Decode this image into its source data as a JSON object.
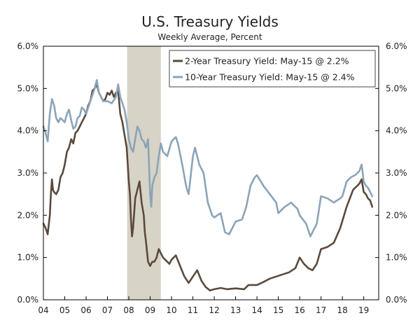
{
  "chart_data": {
    "type": "line",
    "title": "U.S. Treasury Yields",
    "subtitle": "Weekly Average, Percent",
    "xlabel": "",
    "ylabel": "",
    "xlim": [
      2004.0,
      2019.7
    ],
    "ylim": [
      0,
      6
    ],
    "x_ticks": [
      {
        "value": 2004,
        "label": "04"
      },
      {
        "value": 2005,
        "label": "05"
      },
      {
        "value": 2006,
        "label": "06"
      },
      {
        "value": 2007,
        "label": "07"
      },
      {
        "value": 2008,
        "label": "08"
      },
      {
        "value": 2009,
        "label": "09"
      },
      {
        "value": 2010,
        "label": "10"
      },
      {
        "value": 2011,
        "label": "11"
      },
      {
        "value": 2012,
        "label": "12"
      },
      {
        "value": 2013,
        "label": "13"
      },
      {
        "value": 2014,
        "label": "14"
      },
      {
        "value": 2015,
        "label": "15"
      },
      {
        "value": 2016,
        "label": "16"
      },
      {
        "value": 2017,
        "label": "17"
      },
      {
        "value": 2018,
        "label": "18"
      },
      {
        "value": 2019,
        "label": "19"
      }
    ],
    "y_ticks_left": [
      {
        "value": 0,
        "label": "0.0%"
      },
      {
        "value": 1,
        "label": "1.0%"
      },
      {
        "value": 2,
        "label": "2.0%"
      },
      {
        "value": 3,
        "label": "3.0%"
      },
      {
        "value": 4,
        "label": "4.0%"
      },
      {
        "value": 5,
        "label": "5.0%"
      },
      {
        "value": 6,
        "label": "6.0%"
      }
    ],
    "y_ticks_right": [
      {
        "value": 0,
        "label": "0.0%"
      },
      {
        "value": 1,
        "label": "1.0%"
      },
      {
        "value": 2,
        "label": "2.0%"
      },
      {
        "value": 3,
        "label": "3.0%"
      },
      {
        "value": 4,
        "label": "4.0%"
      },
      {
        "value": 5,
        "label": "5.0%"
      },
      {
        "value": 6,
        "label": "6.0%"
      }
    ],
    "grid": false,
    "legend_position": "top-right",
    "recession_shading": [
      {
        "start": 2007.92,
        "end": 2009.5,
        "color": "#d8d3c7"
      }
    ],
    "series": [
      {
        "name": "2-Year Treasury Yield: May-15 @ 2.2%",
        "color": "#5a4a3c",
        "x": [
          2004.0,
          2004.1,
          2004.2,
          2004.3,
          2004.35,
          2004.4,
          2004.45,
          2004.5,
          2004.6,
          2004.7,
          2004.8,
          2004.9,
          2005.0,
          2005.1,
          2005.2,
          2005.3,
          2005.4,
          2005.5,
          2005.6,
          2005.7,
          2005.8,
          2005.9,
          2006.0,
          2006.1,
          2006.2,
          2006.3,
          2006.4,
          2006.5,
          2006.6,
          2006.7,
          2006.8,
          2006.9,
          2007.0,
          2007.1,
          2007.2,
          2007.3,
          2007.4,
          2007.5,
          2007.6,
          2007.7,
          2007.8,
          2007.9,
          2008.0,
          2008.05,
          2008.1,
          2008.15,
          2008.2,
          2008.3,
          2008.4,
          2008.5,
          2008.6,
          2008.7,
          2008.75,
          2008.8,
          2008.9,
          2009.0,
          2009.1,
          2009.2,
          2009.3,
          2009.4,
          2009.5,
          2009.6,
          2009.7,
          2009.8,
          2009.9,
          2010.0,
          2010.2,
          2010.4,
          2010.6,
          2010.8,
          2011.0,
          2011.2,
          2011.4,
          2011.6,
          2011.8,
          2012.0,
          2012.3,
          2012.6,
          2013.0,
          2013.4,
          2013.6,
          2013.8,
          2014.0,
          2014.3,
          2014.6,
          2014.9,
          2015.2,
          2015.5,
          2015.8,
          2016.0,
          2016.2,
          2016.4,
          2016.6,
          2016.8,
          2017.0,
          2017.3,
          2017.6,
          2017.9,
          2018.2,
          2018.5,
          2018.8,
          2018.9,
          2019.0,
          2019.1,
          2019.2,
          2019.3,
          2019.4
        ],
        "values": [
          1.8,
          1.7,
          1.55,
          2.0,
          2.5,
          2.85,
          2.6,
          2.55,
          2.5,
          2.6,
          2.9,
          3.0,
          3.2,
          3.5,
          3.6,
          3.8,
          3.7,
          3.95,
          4.0,
          4.1,
          4.2,
          4.3,
          4.4,
          4.6,
          4.7,
          4.95,
          5.0,
          5.1,
          4.9,
          4.8,
          4.7,
          4.75,
          4.9,
          4.85,
          4.95,
          4.8,
          4.9,
          4.95,
          4.4,
          4.2,
          3.9,
          3.6,
          2.8,
          2.5,
          1.9,
          1.5,
          1.7,
          2.4,
          2.6,
          2.8,
          2.3,
          2.0,
          1.6,
          1.4,
          0.9,
          0.8,
          0.9,
          0.9,
          1.0,
          1.2,
          1.1,
          1.0,
          0.95,
          0.9,
          0.85,
          0.95,
          1.05,
          0.8,
          0.55,
          0.4,
          0.55,
          0.7,
          0.45,
          0.3,
          0.22,
          0.25,
          0.28,
          0.25,
          0.27,
          0.25,
          0.35,
          0.35,
          0.35,
          0.42,
          0.5,
          0.55,
          0.6,
          0.65,
          0.75,
          1.0,
          0.85,
          0.75,
          0.7,
          0.85,
          1.2,
          1.25,
          1.35,
          1.7,
          2.2,
          2.6,
          2.75,
          2.85,
          2.55,
          2.5,
          2.4,
          2.35,
          2.2
        ]
      },
      {
        "name": "10-Year Treasury Yield: May-15 @ 2.4%",
        "color": "#8aa4b8",
        "x": [
          2004.0,
          2004.1,
          2004.2,
          2004.3,
          2004.4,
          2004.5,
          2004.6,
          2004.7,
          2004.8,
          2004.9,
          2005.0,
          2005.1,
          2005.2,
          2005.3,
          2005.4,
          2005.5,
          2005.6,
          2005.7,
          2005.8,
          2005.9,
          2006.0,
          2006.2,
          2006.4,
          2006.5,
          2006.6,
          2006.8,
          2007.0,
          2007.2,
          2007.4,
          2007.5,
          2007.6,
          2007.8,
          2007.9,
          2008.0,
          2008.1,
          2008.2,
          2008.3,
          2008.4,
          2008.5,
          2008.6,
          2008.7,
          2008.8,
          2008.9,
          2009.0,
          2009.05,
          2009.1,
          2009.2,
          2009.3,
          2009.4,
          2009.5,
          2009.6,
          2009.8,
          2010.0,
          2010.2,
          2010.3,
          2010.5,
          2010.7,
          2010.8,
          2011.0,
          2011.1,
          2011.3,
          2011.5,
          2011.7,
          2011.9,
          2012.0,
          2012.3,
          2012.5,
          2012.7,
          2013.0,
          2013.3,
          2013.5,
          2013.7,
          2013.9,
          2014.0,
          2014.3,
          2014.6,
          2014.9,
          2015.0,
          2015.3,
          2015.6,
          2015.9,
          2016.0,
          2016.3,
          2016.5,
          2016.6,
          2016.8,
          2017.0,
          2017.3,
          2017.6,
          2017.9,
          2018.0,
          2018.2,
          2018.4,
          2018.6,
          2018.8,
          2018.9,
          2019.0,
          2019.1,
          2019.2,
          2019.3,
          2019.4
        ],
        "values": [
          4.1,
          3.95,
          3.75,
          4.4,
          4.75,
          4.6,
          4.3,
          4.2,
          4.3,
          4.25,
          4.2,
          4.4,
          4.5,
          4.25,
          4.05,
          4.1,
          4.3,
          4.35,
          4.55,
          4.5,
          4.4,
          4.7,
          5.0,
          5.2,
          4.9,
          4.7,
          4.7,
          4.65,
          4.8,
          5.1,
          4.8,
          4.5,
          4.2,
          3.8,
          3.6,
          3.5,
          3.8,
          4.1,
          4.0,
          3.8,
          3.75,
          3.6,
          3.8,
          2.5,
          2.2,
          2.7,
          2.9,
          3.0,
          3.4,
          3.7,
          3.5,
          3.4,
          3.75,
          3.85,
          3.7,
          3.2,
          2.65,
          2.5,
          3.4,
          3.6,
          3.2,
          3.0,
          2.3,
          2.0,
          1.95,
          2.05,
          1.6,
          1.55,
          1.85,
          1.9,
          2.2,
          2.7,
          2.9,
          2.95,
          2.7,
          2.5,
          2.3,
          2.05,
          2.2,
          2.3,
          2.15,
          2.0,
          1.8,
          1.5,
          1.6,
          1.8,
          2.45,
          2.4,
          2.3,
          2.4,
          2.45,
          2.8,
          2.9,
          2.95,
          3.05,
          3.2,
          2.8,
          2.7,
          2.65,
          2.55,
          2.45
        ]
      }
    ]
  }
}
